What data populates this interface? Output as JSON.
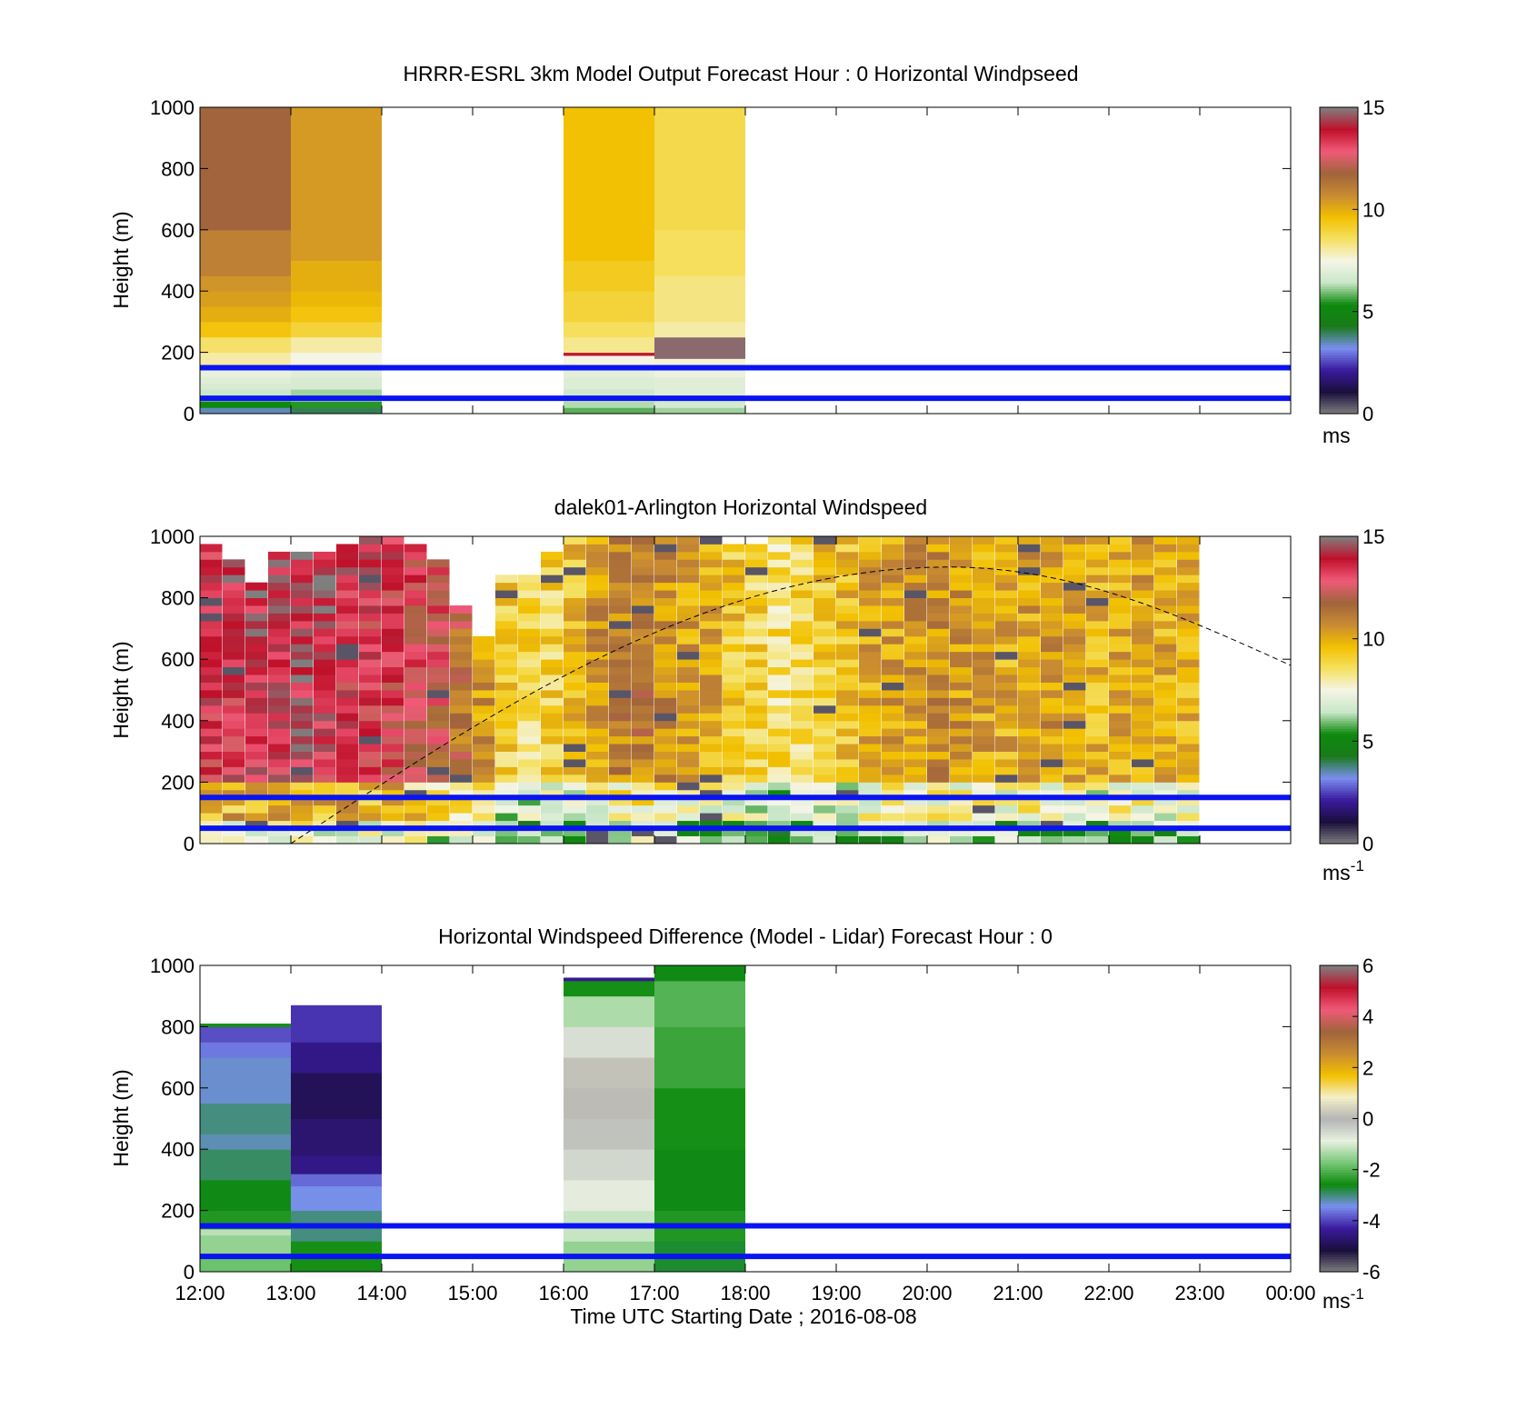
{
  "colors": {
    "guide_line": "#0a14f0",
    "speed_scale": [
      "#7f7f7f",
      "#1a0f3c",
      "#3a1a9e",
      "#7a8ff0",
      "#1a7a1a",
      "#0d8a0d",
      "#c8e6c8",
      "#f5f5e6",
      "#f5e060",
      "#f2c000",
      "#c88a32",
      "#a0643c",
      "#f05a78",
      "#c0102a",
      "#7f7f7f"
    ],
    "diff_scale": [
      "#7f7f7f",
      "#1a0f3c",
      "#3a1a9e",
      "#7a8ff0",
      "#0d8a0d",
      "#78c878",
      "#e8f0e0",
      "#b4b4b4",
      "#f5f0c8",
      "#f2c000",
      "#c88a32",
      "#a0643c",
      "#f05a78",
      "#c0102a",
      "#7f7f7f"
    ]
  },
  "chart_data": [
    {
      "type": "heatmap",
      "title": "HRRR-ESRL 3km Model Output   Forecast Hour : 0 Horizontal Windpseed",
      "xlabel": "",
      "ylabel": "Height (m)",
      "xlim": [
        12,
        24
      ],
      "ylim": [
        0,
        1000
      ],
      "yticks": [
        "0",
        "200",
        "400",
        "600",
        "800",
        "1000"
      ],
      "colorbar": {
        "min": 0,
        "max": 15,
        "ticks": [
          "0",
          "5",
          "10",
          "15"
        ],
        "unit": "ms",
        "scale": "speed"
      },
      "reference_lines_m": [
        50,
        150
      ],
      "columns": [
        {
          "start": 12,
          "end": 13,
          "cells": [
            [
              0,
              20,
              3.5
            ],
            [
              20,
              40,
              5.2
            ],
            [
              40,
              60,
              6
            ],
            [
              60,
              80,
              6.5
            ],
            [
              80,
              100,
              6.8
            ],
            [
              100,
              120,
              7
            ],
            [
              120,
              140,
              7.2
            ],
            [
              140,
              160,
              7.5
            ],
            [
              160,
              200,
              8
            ],
            [
              200,
              250,
              8.5
            ],
            [
              250,
              300,
              9.5
            ],
            [
              300,
              350,
              10
            ],
            [
              350,
              400,
              10.3
            ],
            [
              400,
              450,
              10.5
            ],
            [
              450,
              600,
              11
            ],
            [
              600,
              1000,
              11.8
            ]
          ]
        },
        {
          "start": 13,
          "end": 14,
          "cells": [
            [
              0,
              20,
              4
            ],
            [
              20,
              40,
              5.5
            ],
            [
              40,
              80,
              6.2
            ],
            [
              80,
              120,
              6.8
            ],
            [
              120,
              160,
              7
            ],
            [
              160,
              200,
              7.5
            ],
            [
              200,
              250,
              8
            ],
            [
              250,
              300,
              9
            ],
            [
              300,
              350,
              9.5
            ],
            [
              350,
              400,
              9.8
            ],
            [
              400,
              500,
              10
            ],
            [
              500,
              1000,
              10.4
            ]
          ]
        },
        {
          "start": 16,
          "end": 17,
          "cells": [
            [
              0,
              20,
              5.8
            ],
            [
              20,
              40,
              6.3
            ],
            [
              40,
              80,
              6.6
            ],
            [
              80,
              120,
              6.9
            ],
            [
              120,
              160,
              7.1
            ],
            [
              160,
              190,
              7.5
            ],
            [
              190,
              200,
              14
            ],
            [
              200,
              250,
              8.2
            ],
            [
              250,
              300,
              8.6
            ],
            [
              300,
              400,
              9
            ],
            [
              400,
              500,
              9.3
            ],
            [
              500,
              1000,
              9.6
            ]
          ]
        },
        {
          "start": 17,
          "end": 18,
          "cells": [
            [
              0,
              20,
              6.2
            ],
            [
              20,
              60,
              6.7
            ],
            [
              60,
              120,
              7
            ],
            [
              120,
              160,
              7.3
            ],
            [
              160,
              180,
              7.6
            ],
            [
              180,
              250,
              14.8
            ],
            [
              250,
              300,
              8
            ],
            [
              300,
              450,
              8.3
            ],
            [
              450,
              600,
              8.6
            ],
            [
              600,
              1000,
              8.8
            ]
          ]
        }
      ]
    },
    {
      "type": "heatmap",
      "title": "dalek01-Arlington  Horizontal Windspeed",
      "xlabel": "",
      "ylabel": "Height (m)",
      "xlim": [
        12,
        24
      ],
      "ylim": [
        0,
        1000
      ],
      "yticks": [
        "0",
        "200",
        "400",
        "600",
        "800",
        "1000"
      ],
      "colorbar": {
        "min": 0,
        "max": 15,
        "ticks": [
          "0",
          "5",
          "10",
          "15"
        ],
        "unit": "ms",
        "unit_superscript": "-1",
        "scale": "speed"
      },
      "reference_lines_m": [
        50,
        150
      ],
      "time_step_h": 0.25,
      "profile_tops_m": [
        970,
        920,
        840,
        930,
        930,
        930,
        960,
        990,
        980,
        960,
        920,
        760,
        660,
        860,
        860,
        940,
        1000,
        990,
        980,
        1000,
        1000,
        1000,
        980,
        960,
        960,
        990,
        990,
        990,
        1000,
        1000,
        1000,
        990,
        990,
        990,
        990,
        990,
        980,
        990,
        990,
        1000,
        990,
        990,
        990,
        990
      ],
      "profile_means_ms": [
        13.0,
        13.2,
        13.4,
        13.5,
        13.6,
        13.4,
        13.0,
        12.8,
        12.6,
        12.4,
        12.0,
        11.2,
        10.4,
        9.2,
        8.8,
        9.0,
        9.6,
        10.4,
        10.8,
        11.0,
        10.6,
        10.2,
        10.0,
        9.4,
        9.0,
        8.6,
        8.8,
        9.4,
        9.6,
        10.0,
        10.2,
        10.4,
        10.6,
        10.4,
        10.2,
        10.0,
        10.2,
        10.4,
        10.0,
        9.8,
        10.0,
        10.2,
        10.0,
        9.8
      ],
      "boundary_layer_curve": {
        "start_hour": 13.0,
        "peak_hour": 20.25,
        "peak_m": 900,
        "end_hour": 24.0,
        "end_m": 580
      }
    },
    {
      "type": "heatmap",
      "title": "Horizontal Windspeed Difference (Model - Lidar) Forecast Hour : 0",
      "xlabel": "Time UTC  Starting Date ; 2016-08-08",
      "ylabel": "Height (m)",
      "xlim": [
        12,
        24
      ],
      "ylim": [
        0,
        1000
      ],
      "xticks": [
        "12:00",
        "13:00",
        "14:00",
        "15:00",
        "16:00",
        "17:00",
        "18:00",
        "19:00",
        "20:00",
        "21:00",
        "22:00",
        "23:00",
        "00:00"
      ],
      "yticks": [
        "0",
        "200",
        "400",
        "600",
        "800",
        "1000"
      ],
      "colorbar": {
        "min": -6,
        "max": 6,
        "ticks": [
          "-6",
          "-4",
          "-2",
          "0",
          "2",
          "4",
          "6"
        ],
        "unit": "ms",
        "unit_superscript": "-1",
        "scale": "diff"
      },
      "reference_lines_m": [
        50,
        150
      ],
      "columns": [
        {
          "start": 12,
          "end": 13,
          "cells": [
            [
              0,
              60,
              -1.8
            ],
            [
              60,
              120,
              -1.5
            ],
            [
              120,
              140,
              -1.2
            ],
            [
              140,
              200,
              -2.4
            ],
            [
              200,
              300,
              -2.6
            ],
            [
              300,
              400,
              -2.9
            ],
            [
              400,
              450,
              -3.2
            ],
            [
              450,
              550,
              -3.0
            ],
            [
              550,
              700,
              -3.3
            ],
            [
              700,
              750,
              -3.6
            ],
            [
              750,
              800,
              -3.9
            ],
            [
              800,
              810,
              -2.5
            ]
          ]
        },
        {
          "start": 13,
          "end": 14,
          "cells": [
            [
              0,
              100,
              -2.5
            ],
            [
              100,
              200,
              -3.0
            ],
            [
              200,
              280,
              -3.4
            ],
            [
              280,
              320,
              -3.7
            ],
            [
              320,
              380,
              -4.5
            ],
            [
              380,
              500,
              -4.7
            ],
            [
              500,
              650,
              -4.9
            ],
            [
              650,
              750,
              -4.5
            ],
            [
              750,
              870,
              -4.1
            ]
          ]
        },
        {
          "start": 16,
          "end": 17,
          "cells": [
            [
              0,
              100,
              -1.5
            ],
            [
              100,
              200,
              -1.1
            ],
            [
              200,
              300,
              -0.8
            ],
            [
              300,
              400,
              -0.5
            ],
            [
              400,
              500,
              -0.2
            ],
            [
              500,
              600,
              0.1
            ],
            [
              600,
              700,
              0.2
            ],
            [
              700,
              800,
              -0.6
            ],
            [
              800,
              900,
              -1.3
            ],
            [
              900,
              950,
              -2.5
            ],
            [
              950,
              960,
              -4.4
            ]
          ]
        },
        {
          "start": 17,
          "end": 18,
          "cells": [
            [
              0,
              100,
              -2.7
            ],
            [
              100,
              200,
              -2.4
            ],
            [
              200,
              400,
              -2.6
            ],
            [
              400,
              600,
              -2.5
            ],
            [
              600,
              800,
              -2.2
            ],
            [
              800,
              950,
              -2.0
            ],
            [
              950,
              1000,
              -2.6
            ]
          ]
        }
      ]
    }
  ]
}
